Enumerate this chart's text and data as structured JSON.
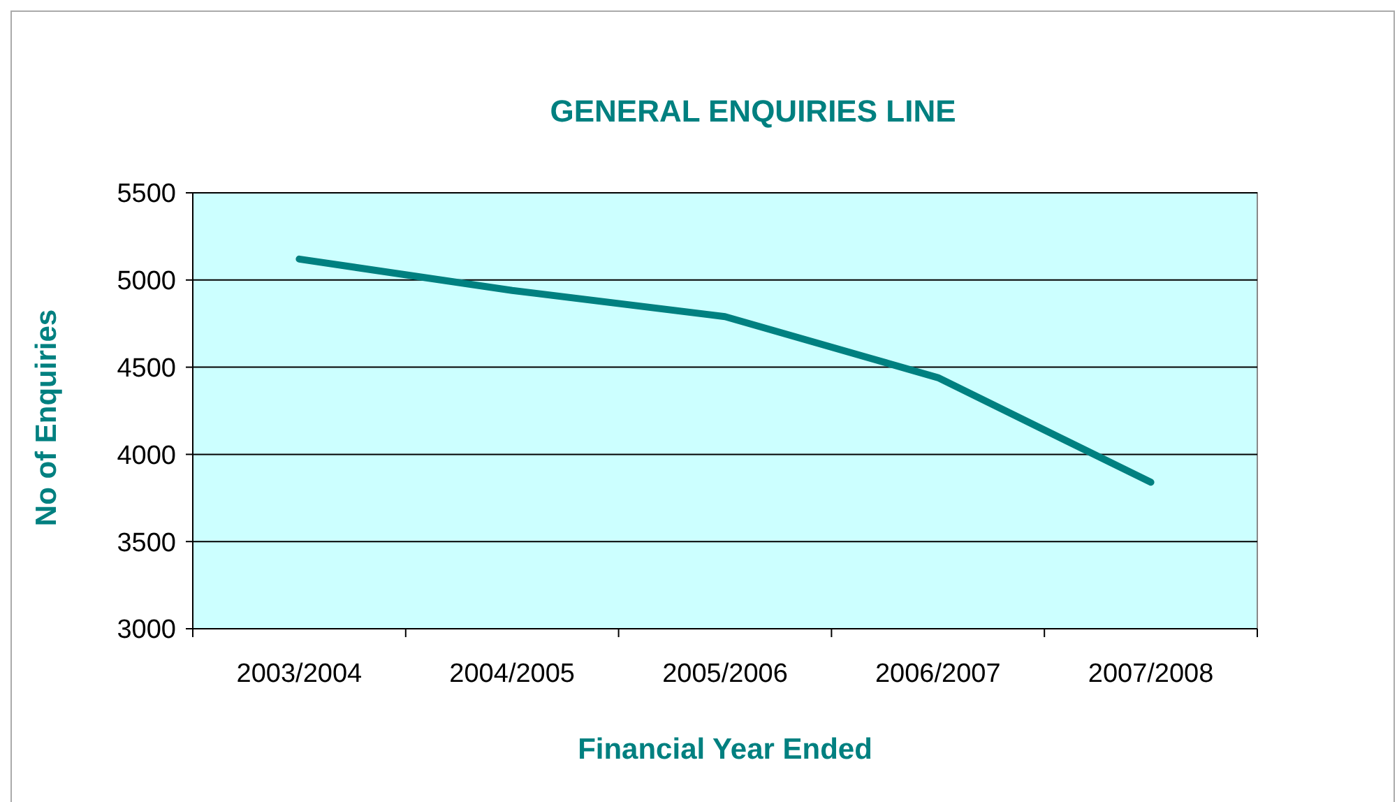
{
  "chart_data": {
    "type": "line",
    "title": "GENERAL ENQUIRIES LINE",
    "xlabel": "Financial Year Ended",
    "ylabel": "No of Enquiries",
    "categories": [
      "2003/2004",
      "2004/2005",
      "2005/2006",
      "2006/2007",
      "2007/2008"
    ],
    "series": [
      {
        "color": "#008080",
        "values": [
          5120,
          4940,
          4790,
          4440,
          3840
        ]
      }
    ],
    "ylim": [
      3000,
      5500
    ],
    "yticks": [
      3000,
      3500,
      4000,
      4500,
      5000,
      5500
    ],
    "grid": "y",
    "marker": "none",
    "line_style": "solid"
  }
}
